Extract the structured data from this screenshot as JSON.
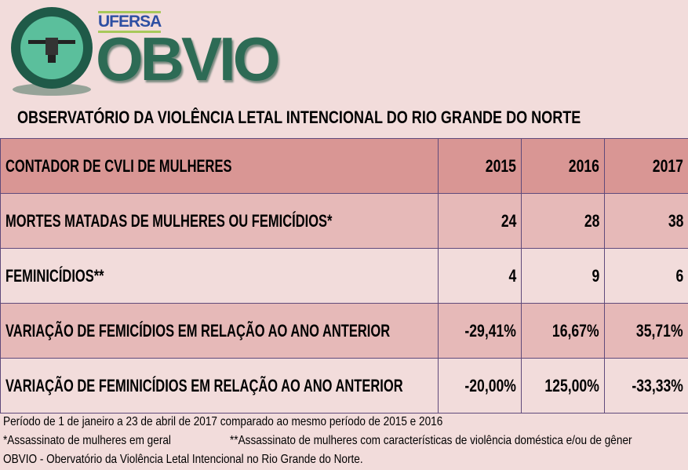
{
  "logo": {
    "badge_text": "OBVIO",
    "ring_text": "OBSERVATÓRIO DA VIOLÊNCIA LETAL INTENCIONAL",
    "ufersa": "UFERSA",
    "wordmark": "OBVIO"
  },
  "title": "OBSERVATÓRIO  DA VIOLÊNCIA LETAL INTENCIONAL DO RIO GRANDE DO NORTE",
  "table": {
    "header": {
      "label": "CONTADOR DE CVLI DE MULHERES",
      "years": [
        "2015",
        "2016",
        "2017"
      ]
    },
    "rows": [
      {
        "label": "MORTES MATADAS DE MULHERES OU FEMICÍDIOS*",
        "values": [
          "24",
          "28",
          "38"
        ]
      },
      {
        "label": "FEMINICÍDIOS**",
        "values": [
          "4",
          "9",
          "6"
        ]
      },
      {
        "label": "VARIAÇÃO DE FEMICÍDIOS EM RELAÇÃO AO ANO ANTERIOR",
        "values": [
          "-29,41%",
          "16,67%",
          "35,71%"
        ]
      },
      {
        "label": "VARIAÇÃO DE FEMINICÍDIOS EM RELAÇÃO AO ANO ANTERIOR",
        "values": [
          "-20,00%",
          "125,00%",
          "-33,33%"
        ]
      }
    ]
  },
  "footer": {
    "period": "Período de 1 de janeiro a 23 de abril de 2017 comparado ao mesmo período de 2015 e 2016",
    "note1": "*Assassinato de mulheres em geral",
    "note2": "**Assassinato de mulheres com características de violência doméstica e/ou de gêner",
    "source": "OBVIO - Obervatório da Violência Letal Intencional no Rio Grande do Norte."
  },
  "colors": {
    "header": "#d99694",
    "row_dark": "#e6b9b8",
    "row_light": "#f2dcdb",
    "grid": "#604a7b",
    "brand_green": "#2d6b55"
  }
}
